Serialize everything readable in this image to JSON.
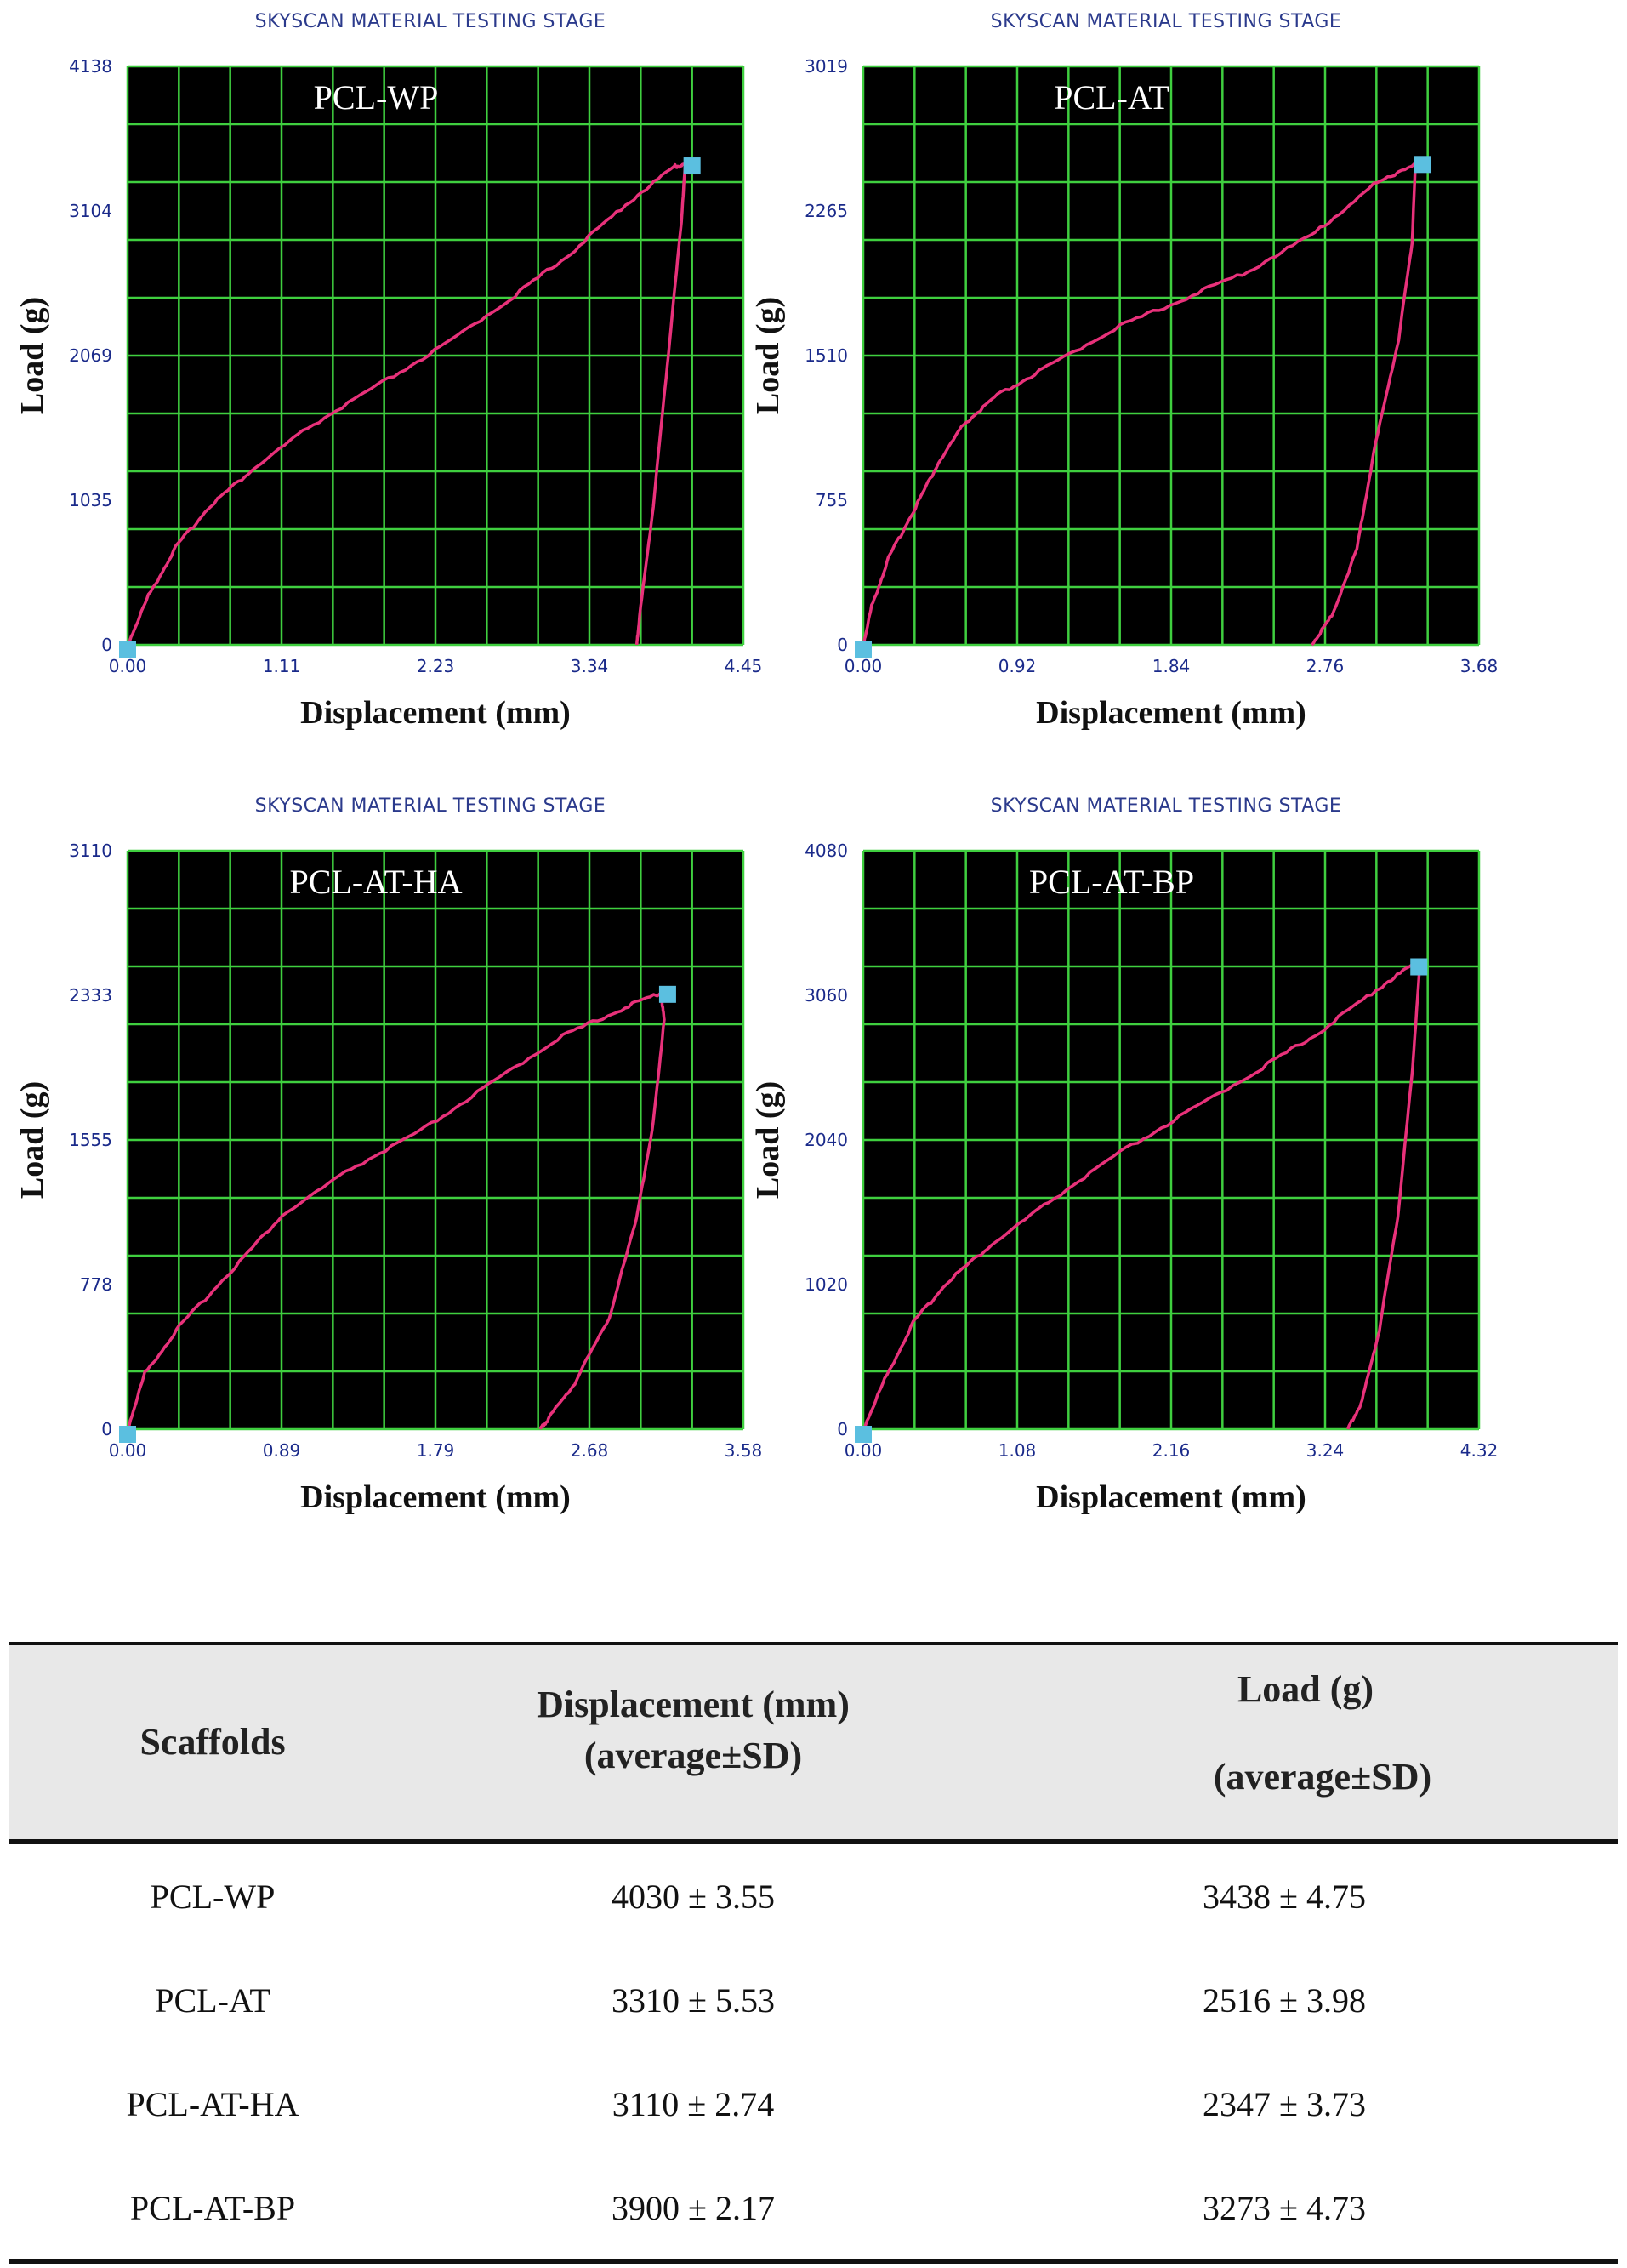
{
  "header": "SKYSCAN MATERIAL TESTING STAGE",
  "xlabel": "Displacement (mm)",
  "ylabel": "Load (g)",
  "chart_data": [
    {
      "type": "line",
      "title": "PCL-WP",
      "xlabel": "Displacement (mm)",
      "ylabel": "Load (g)",
      "xlim": [
        0,
        4.45
      ],
      "ylim": [
        0,
        4138
      ],
      "x_ticks": [
        "0.00",
        "1.11",
        "2.23",
        "3.34",
        "4.45"
      ],
      "y_ticks": [
        "0",
        "1035",
        "2069",
        "3104",
        "4138"
      ],
      "series": [
        {
          "x": [
            0,
            0.15,
            0.35,
            0.6,
            0.9,
            1.3,
            1.8,
            2.3,
            2.8,
            3.2,
            3.6,
            3.95,
            4.03,
            4.0,
            3.9,
            3.8,
            3.7,
            3.68
          ],
          "y": [
            0,
            350,
            700,
            1000,
            1250,
            1550,
            1850,
            2150,
            2500,
            2800,
            3150,
            3420,
            3438,
            3000,
            2000,
            1000,
            200,
            0
          ]
        }
      ]
    },
    {
      "type": "line",
      "title": "PCL-AT",
      "xlabel": "Displacement (mm)",
      "ylabel": "Load (g)",
      "xlim": [
        0,
        3.68
      ],
      "ylim": [
        0,
        3019
      ],
      "x_ticks": [
        "0.00",
        "0.92",
        "1.84",
        "2.76",
        "3.68"
      ],
      "y_ticks": [
        "0",
        "755",
        "1510",
        "2265",
        "3019"
      ],
      "series": [
        {
          "x": [
            0,
            0.05,
            0.15,
            0.3,
            0.45,
            0.6,
            0.8,
            1.1,
            1.5,
            1.9,
            2.3,
            2.7,
            3.05,
            3.3,
            3.28,
            3.2,
            3.05,
            2.95,
            2.8,
            2.68
          ],
          "y": [
            0,
            200,
            450,
            700,
            950,
            1150,
            1300,
            1450,
            1650,
            1800,
            1950,
            2150,
            2400,
            2516,
            2100,
            1600,
            1000,
            500,
            150,
            0
          ]
        }
      ]
    },
    {
      "type": "line",
      "title": "PCL-AT-HA",
      "xlabel": "Displacement (mm)",
      "ylabel": "Load (g)",
      "xlim": [
        0,
        3.58
      ],
      "ylim": [
        0,
        3110
      ],
      "x_ticks": [
        "0.00",
        "0.89",
        "1.79",
        "2.68",
        "3.58"
      ],
      "y_ticks": [
        "0",
        "778",
        "1555",
        "2333",
        "3110"
      ],
      "series": [
        {
          "x": [
            0,
            0.1,
            0.3,
            0.6,
            0.9,
            1.3,
            1.7,
            2.1,
            2.5,
            2.85,
            3.1,
            3.12,
            3.05,
            2.95,
            2.8,
            2.6,
            2.45,
            2.4
          ],
          "y": [
            0,
            300,
            550,
            850,
            1150,
            1400,
            1600,
            1850,
            2100,
            2250,
            2347,
            2200,
            1600,
            1100,
            600,
            250,
            60,
            0
          ]
        }
      ]
    },
    {
      "type": "line",
      "title": "PCL-AT-BP",
      "xlabel": "Displacement (mm)",
      "ylabel": "Load (g)",
      "xlim": [
        0,
        4.32
      ],
      "ylim": [
        0,
        4080
      ],
      "x_ticks": [
        "0.00",
        "1.08",
        "2.16",
        "3.24",
        "4.32"
      ],
      "y_ticks": [
        "0",
        "1020",
        "2040",
        "3060",
        "4080"
      ],
      "series": [
        {
          "x": [
            0,
            0.15,
            0.35,
            0.6,
            0.9,
            1.3,
            1.8,
            2.3,
            2.8,
            3.2,
            3.6,
            3.85,
            3.9,
            3.85,
            3.75,
            3.62,
            3.5,
            3.4
          ],
          "y": [
            0,
            350,
            750,
            1050,
            1300,
            1600,
            1950,
            2250,
            2550,
            2800,
            3100,
            3273,
            3200,
            2500,
            1500,
            700,
            200,
            0
          ]
        }
      ]
    }
  ],
  "table": {
    "headers": {
      "col1": "Scaffolds",
      "col2_line1": "Displacement (mm)",
      "col2_line2": "(average±SD)",
      "col3_line1": "Load (g)",
      "col3_line2": "(average±SD)"
    },
    "rows": [
      {
        "scaffold": "PCL-WP",
        "displacement": "4030 ± 3.55",
        "load": "3438 ± 4.75"
      },
      {
        "scaffold": "PCL-AT",
        "displacement": "3310 ± 5.53",
        "load": "2516 ± 3.98"
      },
      {
        "scaffold": "PCL-AT-HA",
        "displacement": "3110 ± 2.74",
        "load": "2347 ± 3.73"
      },
      {
        "scaffold": "PCL-AT-BP",
        "displacement": "3900 ± 2.17",
        "load": "3273 ± 4.73"
      }
    ]
  }
}
